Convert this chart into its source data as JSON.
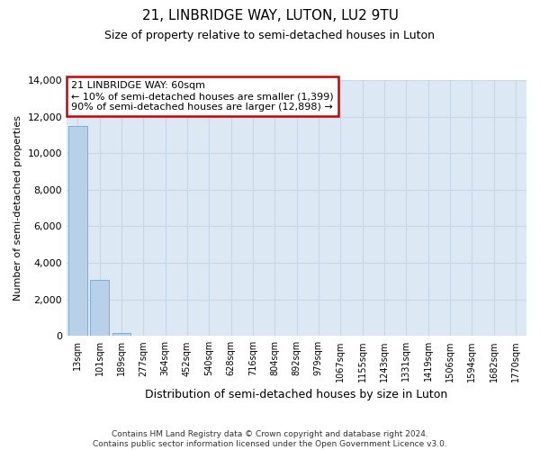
{
  "title": "21, LINBRIDGE WAY, LUTON, LU2 9TU",
  "subtitle": "Size of property relative to semi-detached houses in Luton",
  "xlabel": "Distribution of semi-detached houses by size in Luton",
  "ylabel": "Number of semi-detached properties",
  "categories": [
    "13sqm",
    "101sqm",
    "189sqm",
    "277sqm",
    "364sqm",
    "452sqm",
    "540sqm",
    "628sqm",
    "716sqm",
    "804sqm",
    "892sqm",
    "979sqm",
    "1067sqm",
    "1155sqm",
    "1243sqm",
    "1331sqm",
    "1419sqm",
    "1506sqm",
    "1594sqm",
    "1682sqm",
    "1770sqm"
  ],
  "values": [
    11480,
    3050,
    170,
    0,
    0,
    0,
    0,
    0,
    0,
    0,
    0,
    0,
    0,
    0,
    0,
    0,
    0,
    0,
    0,
    0,
    0
  ],
  "bar_color": "#b8d0e8",
  "bar_edge_color": "#7aafd4",
  "annotation_text": "21 LINBRIDGE WAY: 60sqm\n← 10% of semi-detached houses are smaller (1,399)\n90% of semi-detached houses are larger (12,898) →",
  "annotation_box_color": "#ffffff",
  "annotation_edge_color": "#cc0000",
  "grid_color": "#c8d8e8",
  "background_color": "#dce8f4",
  "ylim": [
    0,
    14000
  ],
  "yticks": [
    0,
    2000,
    4000,
    6000,
    8000,
    10000,
    12000,
    14000
  ],
  "footer_line1": "Contains HM Land Registry data © Crown copyright and database right 2024.",
  "footer_line2": "Contains public sector information licensed under the Open Government Licence v3.0."
}
